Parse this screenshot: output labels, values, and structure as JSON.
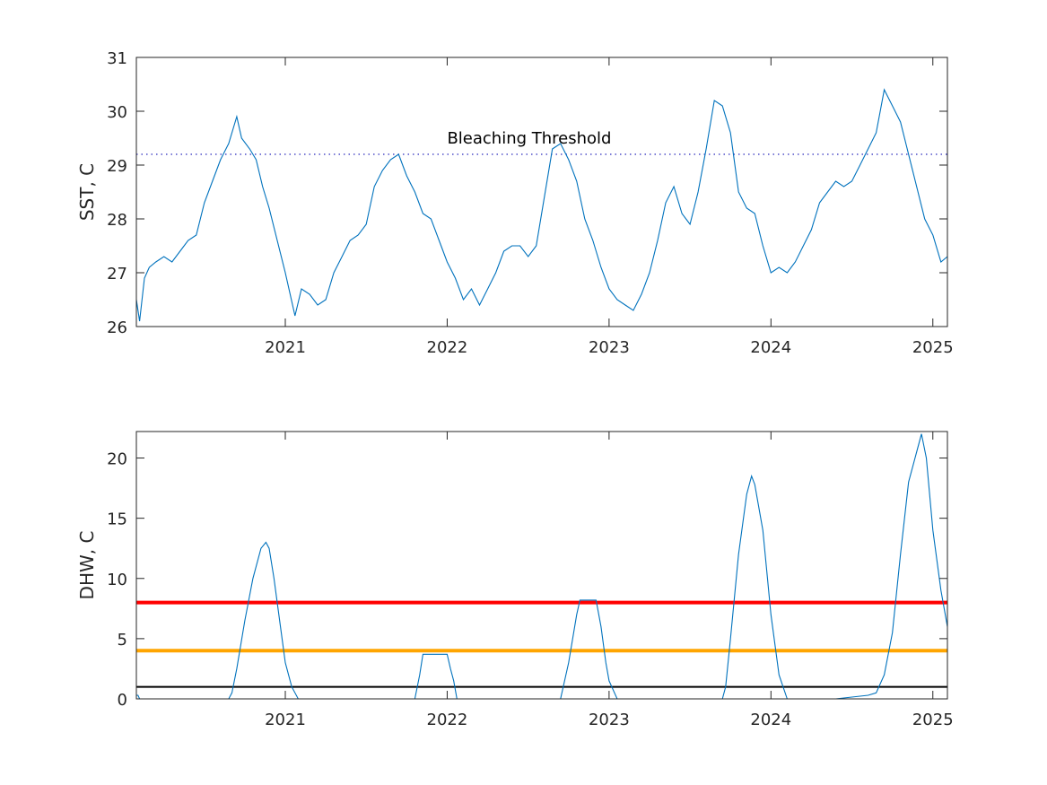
{
  "chart_data": [
    {
      "type": "line",
      "ylabel": "SST, C",
      "xlim": [
        2020.08,
        2025.09
      ],
      "ylim": [
        26,
        31
      ],
      "x_ticks": [
        2021,
        2022,
        2023,
        2024,
        2025
      ],
      "x_tick_labels": [
        "2021",
        "2022",
        "2023",
        "2024",
        "2025"
      ],
      "y_ticks": [
        26,
        27,
        28,
        29,
        30,
        31
      ],
      "y_tick_labels": [
        "26",
        "27",
        "28",
        "29",
        "30",
        "31"
      ],
      "series_color": "#0072BD",
      "threshold": {
        "value": 29.2,
        "color": "#4F4FC8",
        "style": "dotted"
      },
      "annotation": {
        "text": "Bleaching Threshold",
        "x": 2022.0,
        "y": 29.4
      },
      "series": [
        {
          "x": [
            2020.08,
            2020.1,
            2020.13,
            2020.16,
            2020.2,
            2020.25,
            2020.3,
            2020.35,
            2020.4,
            2020.45,
            2020.5,
            2020.55,
            2020.6,
            2020.65,
            2020.7,
            2020.73,
            2020.78,
            2020.82,
            2020.86,
            2020.9,
            2020.95,
            2021.0,
            2021.03,
            2021.06,
            2021.1,
            2021.15,
            2021.2,
            2021.25,
            2021.3,
            2021.35,
            2021.4,
            2021.45,
            2021.5,
            2021.55,
            2021.6,
            2021.65,
            2021.7,
            2021.75,
            2021.8,
            2021.85,
            2021.9,
            2021.95,
            2022.0,
            2022.05,
            2022.1,
            2022.15,
            2022.2,
            2022.25,
            2022.3,
            2022.35,
            2022.4,
            2022.45,
            2022.5,
            2022.55,
            2022.6,
            2022.65,
            2022.7,
            2022.75,
            2022.8,
            2022.85,
            2022.9,
            2022.95,
            2023.0,
            2023.05,
            2023.1,
            2023.15,
            2023.2,
            2023.25,
            2023.3,
            2023.35,
            2023.4,
            2023.45,
            2023.5,
            2023.55,
            2023.6,
            2023.65,
            2023.7,
            2023.75,
            2023.8,
            2023.85,
            2023.9,
            2023.95,
            2024.0,
            2024.05,
            2024.1,
            2024.15,
            2024.2,
            2024.25,
            2024.3,
            2024.35,
            2024.4,
            2024.45,
            2024.5,
            2024.55,
            2024.6,
            2024.65,
            2024.7,
            2024.75,
            2024.8,
            2024.85,
            2024.9,
            2024.95,
            2025.0,
            2025.05,
            2025.09
          ],
          "y": [
            26.5,
            26.1,
            26.9,
            27.1,
            27.2,
            27.3,
            27.2,
            27.4,
            27.6,
            27.7,
            28.3,
            28.7,
            29.1,
            29.4,
            29.9,
            29.5,
            29.3,
            29.1,
            28.6,
            28.2,
            27.6,
            27.0,
            26.6,
            26.2,
            26.7,
            26.6,
            26.4,
            26.5,
            27.0,
            27.3,
            27.6,
            27.7,
            27.9,
            28.6,
            28.9,
            29.1,
            29.2,
            28.8,
            28.5,
            28.1,
            28.0,
            27.6,
            27.2,
            26.9,
            26.5,
            26.7,
            26.4,
            26.7,
            27.0,
            27.4,
            27.5,
            27.5,
            27.3,
            27.5,
            28.4,
            29.3,
            29.4,
            29.1,
            28.7,
            28.0,
            27.6,
            27.1,
            26.7,
            26.5,
            26.4,
            26.3,
            26.6,
            27.0,
            27.6,
            28.3,
            28.6,
            28.1,
            27.9,
            28.5,
            29.3,
            30.2,
            30.1,
            29.6,
            28.5,
            28.2,
            28.1,
            27.5,
            27.0,
            27.1,
            27.0,
            27.2,
            27.5,
            27.8,
            28.3,
            28.5,
            28.7,
            28.6,
            28.7,
            29.0,
            29.3,
            29.6,
            30.4,
            30.1,
            29.8,
            29.2,
            28.6,
            28.0,
            27.7,
            27.2,
            27.3
          ]
        }
      ]
    },
    {
      "type": "line",
      "ylabel": "DHW, C",
      "xlim": [
        2020.08,
        2025.09
      ],
      "ylim": [
        0,
        22.2
      ],
      "x_ticks": [
        2021,
        2022,
        2023,
        2024,
        2025
      ],
      "x_tick_labels": [
        "2021",
        "2022",
        "2023",
        "2024",
        "2025"
      ],
      "y_ticks": [
        0,
        5,
        10,
        15,
        20
      ],
      "y_tick_labels": [
        "0",
        "5",
        "10",
        "15",
        "20"
      ],
      "series_color": "#0072BD",
      "reference_lines": [
        {
          "value": 8,
          "color": "#FF0000"
        },
        {
          "value": 4,
          "color": "#FFA500"
        },
        {
          "value": 1,
          "color": "#000000"
        }
      ],
      "series": [
        {
          "x": [
            2020.08,
            2020.09,
            2020.1,
            2020.65,
            2020.67,
            2020.7,
            2020.75,
            2020.8,
            2020.85,
            2020.88,
            2020.9,
            2020.93,
            2020.97,
            2021.0,
            2021.04,
            2021.08,
            2021.8,
            2021.83,
            2021.85,
            2022.0,
            2022.02,
            2022.04,
            2022.06,
            2022.5,
            2022.7,
            2022.75,
            2022.8,
            2022.82,
            2022.92,
            2022.95,
            2022.98,
            2023.0,
            2023.05,
            2023.7,
            2023.72,
            2023.75,
            2023.8,
            2023.85,
            2023.88,
            2023.9,
            2023.95,
            2024.0,
            2024.05,
            2024.1,
            2024.4,
            2024.6,
            2024.65,
            2024.7,
            2024.75,
            2024.8,
            2024.85,
            2024.9,
            2024.93,
            2024.96,
            2025.0,
            2025.05,
            2025.09
          ],
          "y": [
            0.3,
            0.3,
            0,
            0,
            0.5,
            2.5,
            6.5,
            10,
            12.5,
            13,
            12.5,
            10,
            6,
            3,
            1,
            0,
            0,
            2,
            3.7,
            3.7,
            2.5,
            1.5,
            0,
            0,
            0,
            3,
            7,
            8.2,
            8.2,
            6,
            3,
            1.5,
            0,
            0,
            1,
            5,
            12,
            17,
            18.5,
            17.8,
            14,
            7,
            2,
            0,
            0,
            0.3,
            0.5,
            2,
            5.5,
            12,
            18,
            20.5,
            22,
            20,
            14,
            9,
            6
          ]
        }
      ]
    }
  ]
}
